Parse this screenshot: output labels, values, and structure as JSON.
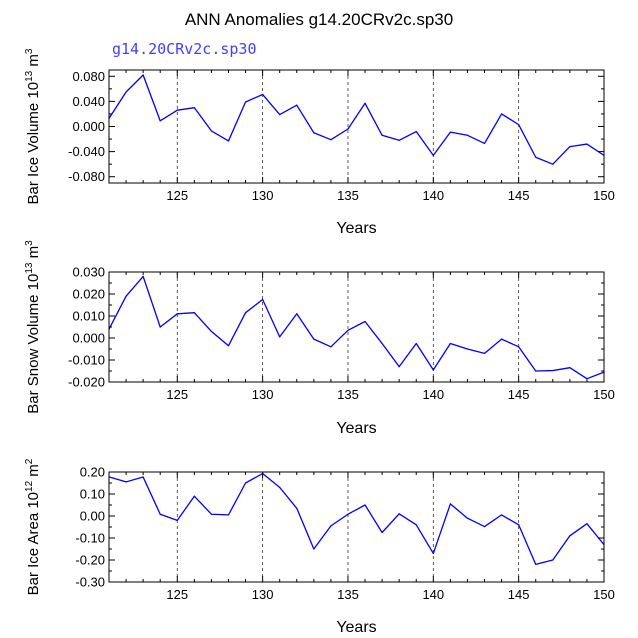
{
  "title": "ANN Anomalies g14.20CRv2c.sp30",
  "subtitle": "g14.20CRv2c.sp30",
  "colors": {
    "line": "#0000ff",
    "subtitle": "#4040ff",
    "axis": "#000000"
  },
  "chart_data": [
    {
      "type": "line",
      "ylabel_main": "Bar Ice Volume 10",
      "ylabel_exp": "13",
      "ylabel_unit": "m",
      "ylabel_unit_exp": "3",
      "xlabel": "Years",
      "xlim": [
        121,
        150
      ],
      "ylim": [
        -0.09,
        0.09
      ],
      "xticks": [
        125,
        130,
        135,
        140,
        145,
        150
      ],
      "xtick_labels": [
        "125",
        "130",
        "135",
        "140",
        "145",
        "150"
      ],
      "yticks": [
        0.08,
        0.04,
        0.0,
        -0.04,
        -0.08
      ],
      "ytick_labels": [
        "0.080",
        "0.040",
        "0.000",
        "-0.040",
        "-0.080"
      ],
      "yminor": [
        0.06,
        0.02,
        -0.02,
        -0.06
      ],
      "vlines": [
        125,
        130,
        135,
        140,
        145
      ],
      "x": [
        121,
        122,
        123,
        124,
        125,
        126,
        127,
        128,
        129,
        130,
        131,
        132,
        133,
        134,
        135,
        136,
        137,
        138,
        139,
        140,
        141,
        142,
        143,
        144,
        145,
        146,
        147,
        148,
        149,
        150
      ],
      "values": [
        0.013,
        0.055,
        0.082,
        0.009,
        0.026,
        0.03,
        -0.007,
        -0.023,
        0.039,
        0.051,
        0.019,
        0.034,
        -0.01,
        -0.021,
        -0.004,
        0.037,
        -0.014,
        -0.022,
        -0.008,
        -0.046,
        -0.009,
        -0.014,
        -0.027,
        0.02,
        0.003,
        -0.049,
        -0.06,
        -0.032,
        -0.028,
        -0.046
      ]
    },
    {
      "type": "line",
      "ylabel_main": "Bar Snow Volume 10",
      "ylabel_exp": "13",
      "ylabel_unit": "m",
      "ylabel_unit_exp": "3",
      "xlabel": "Years",
      "xlim": [
        121,
        150
      ],
      "ylim": [
        -0.02,
        0.03
      ],
      "xticks": [
        125,
        130,
        135,
        140,
        145,
        150
      ],
      "xtick_labels": [
        "125",
        "130",
        "135",
        "140",
        "145",
        "150"
      ],
      "yticks": [
        0.03,
        0.02,
        0.01,
        0.0,
        -0.01,
        -0.02
      ],
      "ytick_labels": [
        "0.030",
        "0.020",
        "0.010",
        "0.000",
        "-0.010",
        "-0.020"
      ],
      "yminor": [
        0.025,
        0.015,
        0.005,
        -0.005,
        -0.015
      ],
      "vlines": [
        125,
        130,
        135,
        140,
        145
      ],
      "x": [
        121,
        122,
        123,
        124,
        125,
        126,
        127,
        128,
        129,
        130,
        131,
        132,
        133,
        134,
        135,
        136,
        137,
        138,
        139,
        140,
        141,
        142,
        143,
        144,
        145,
        146,
        147,
        148,
        149,
        150
      ],
      "values": [
        0.004,
        0.019,
        0.028,
        0.005,
        0.011,
        0.0115,
        0.003,
        -0.0035,
        0.0115,
        0.0175,
        0.0005,
        0.011,
        -0.0005,
        -0.004,
        0.0035,
        0.0075,
        -0.0025,
        -0.013,
        -0.0025,
        -0.0145,
        -0.0025,
        -0.005,
        -0.007,
        -0.0005,
        -0.004,
        -0.015,
        -0.0148,
        -0.0135,
        -0.0185,
        -0.0155
      ]
    },
    {
      "type": "line",
      "ylabel_main": "Bar Ice Area 10",
      "ylabel_exp": "12",
      "ylabel_unit": "m",
      "ylabel_unit_exp": "2",
      "xlabel": "Years",
      "xlim": [
        121,
        150
      ],
      "ylim": [
        -0.3,
        0.2
      ],
      "xticks": [
        125,
        130,
        135,
        140,
        145,
        150
      ],
      "xtick_labels": [
        "125",
        "130",
        "135",
        "140",
        "145",
        "150"
      ],
      "yticks": [
        0.2,
        0.1,
        0.0,
        -0.1,
        -0.2,
        -0.3
      ],
      "ytick_labels": [
        "0.20",
        "0.10",
        "0.00",
        "-0.10",
        "-0.20",
        "-0.30"
      ],
      "yminor": [
        0.15,
        0.05,
        -0.05,
        -0.15,
        -0.25
      ],
      "vlines": [
        125,
        130,
        135,
        140,
        145
      ],
      "x": [
        121,
        122,
        123,
        124,
        125,
        126,
        127,
        128,
        129,
        130,
        131,
        132,
        133,
        134,
        135,
        136,
        137,
        138,
        139,
        140,
        141,
        142,
        143,
        144,
        145,
        146,
        147,
        148,
        149,
        150
      ],
      "values": [
        0.178,
        0.155,
        0.177,
        0.008,
        -0.02,
        0.09,
        0.008,
        0.005,
        0.15,
        0.193,
        0.13,
        0.035,
        -0.15,
        -0.045,
        0.008,
        0.05,
        -0.075,
        0.01,
        -0.04,
        -0.17,
        0.055,
        -0.01,
        -0.048,
        0.005,
        -0.04,
        -0.22,
        -0.2,
        -0.09,
        -0.035,
        -0.13
      ]
    }
  ]
}
